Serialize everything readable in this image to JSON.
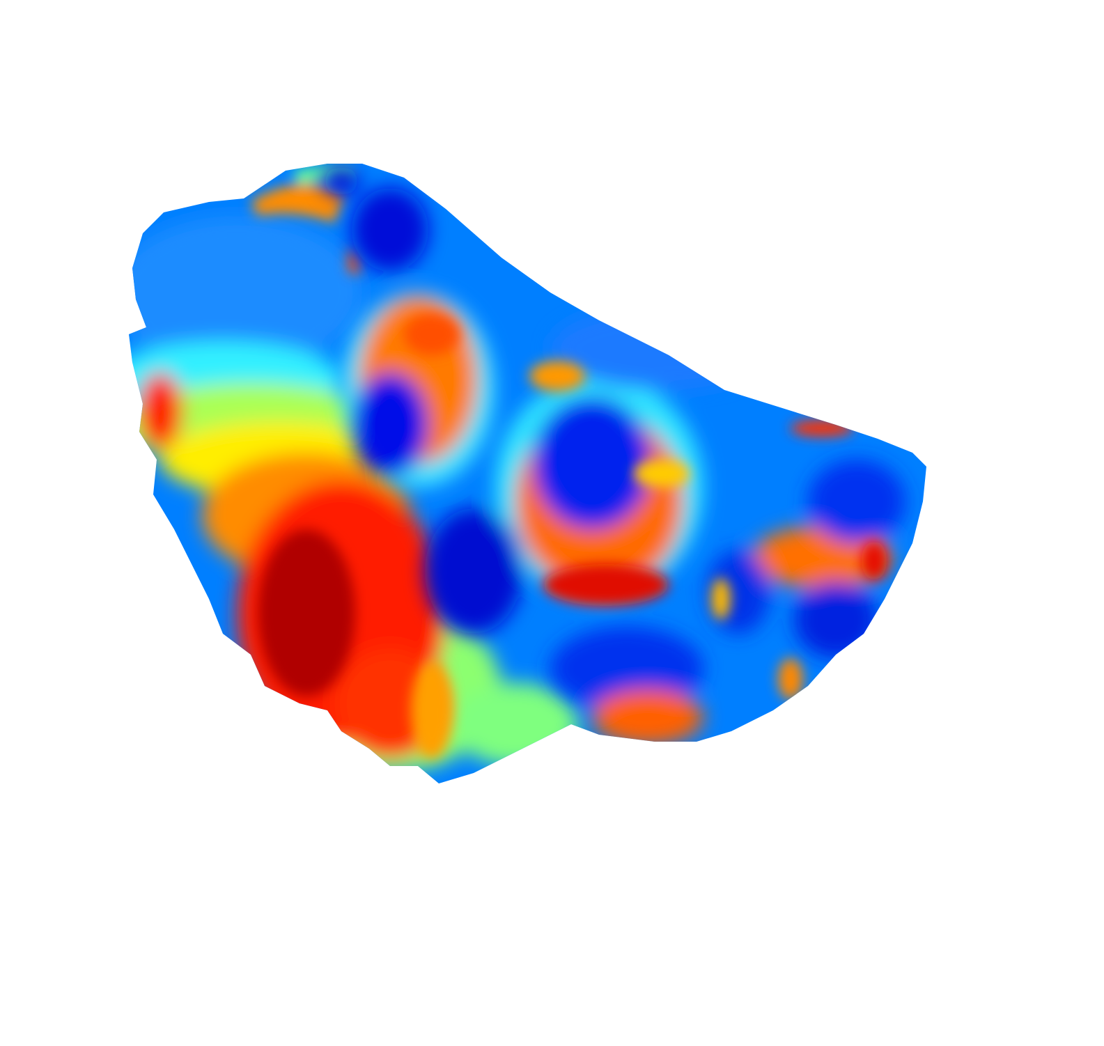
{
  "chart_data": {
    "type": "heatmap",
    "title": "",
    "colormap": "jet",
    "colormap_stops": [
      "#00007f",
      "#0000ff",
      "#007fff",
      "#00ffff",
      "#7fff7f",
      "#ffff00",
      "#ff7f00",
      "#ff0000",
      "#7f0000"
    ],
    "axes_visible": false,
    "grid": false,
    "legend": "none",
    "value_range": [
      0,
      1
    ],
    "surface_shape": "irregular 3D mesh patch rendered in perspective",
    "background_color": "#ffffff"
  }
}
